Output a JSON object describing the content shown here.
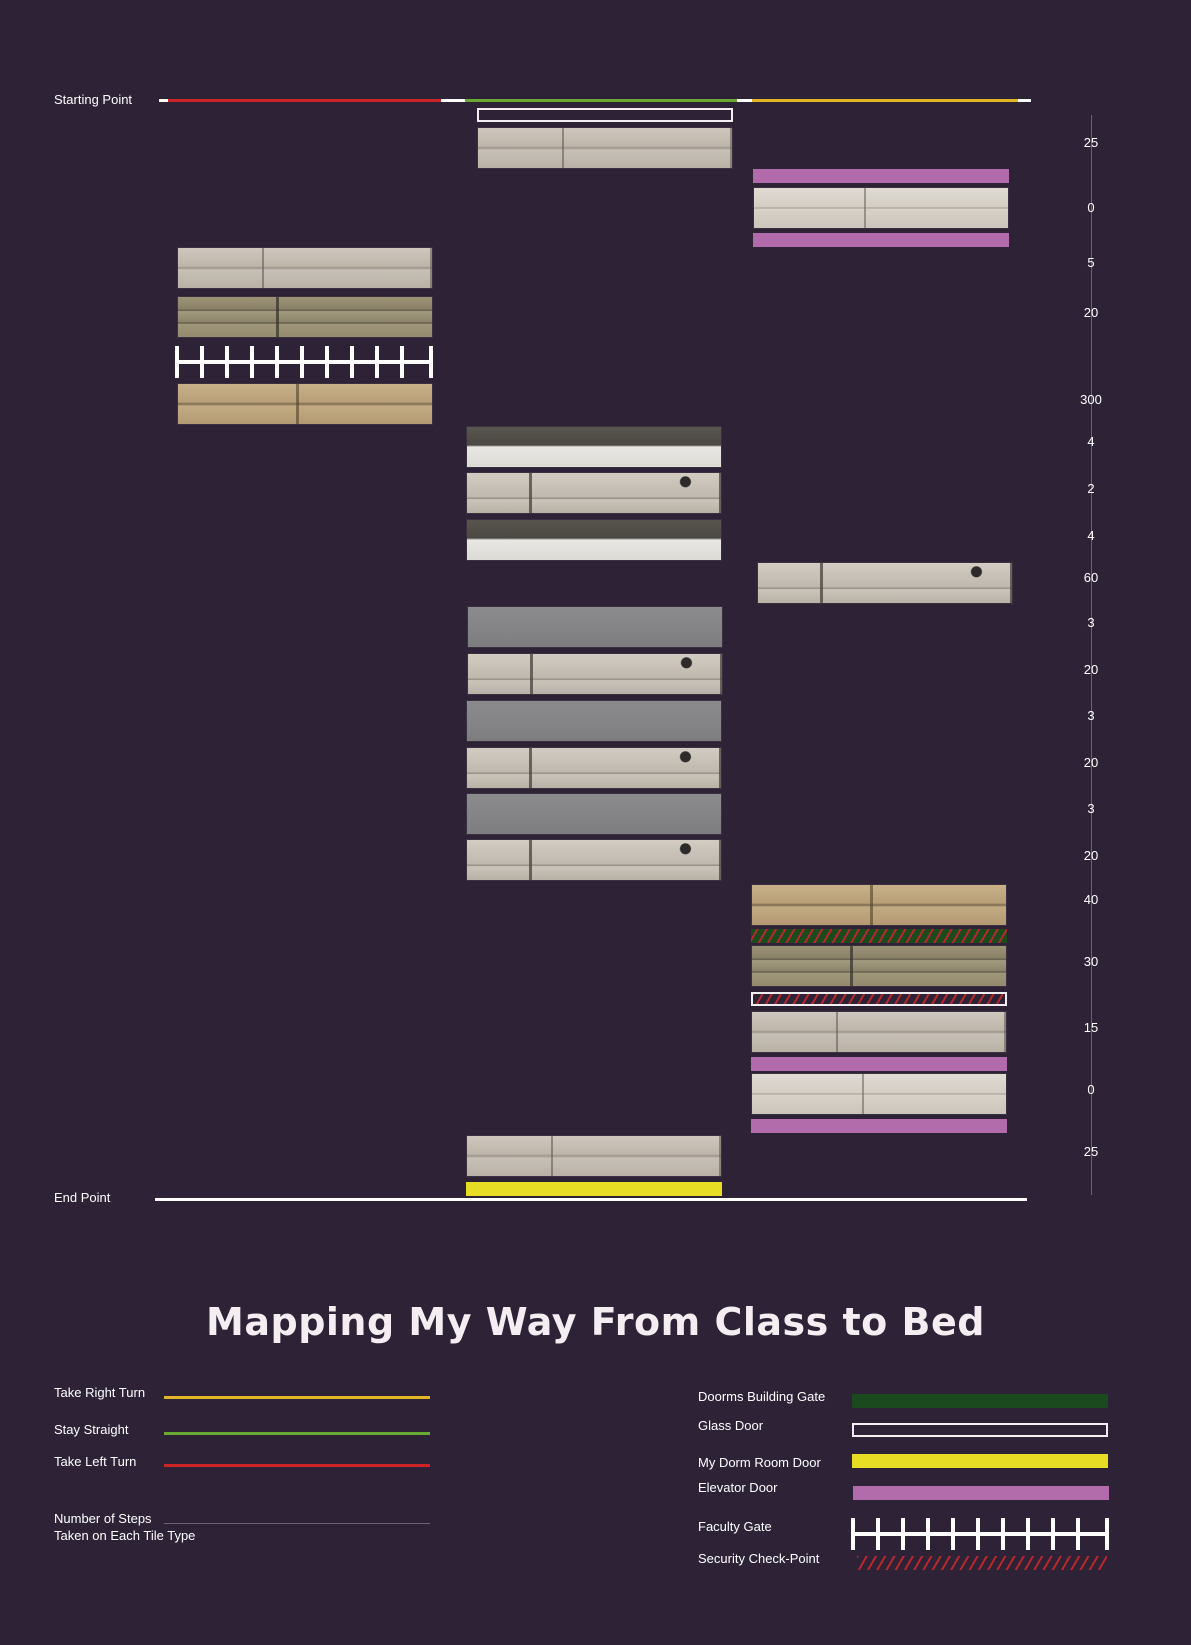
{
  "labels": {
    "start": "Starting Point",
    "end": "End Point"
  },
  "colors": {
    "background": "#2e2336",
    "right_turn": "#e2b626",
    "straight": "#6aaa34",
    "left_turn": "#cc2228",
    "dorms_gate": "#1a4a1e",
    "glass_door": "#f2eef2",
    "dorm_door": "#e7dd25",
    "elevator_door": "#b26bab",
    "security": "#b8272a"
  },
  "route": [
    "left_turn",
    "straight",
    "right_turn"
  ],
  "step_counts": [
    "25",
    "0",
    "5",
    "20",
    "300",
    "4",
    "2",
    "4",
    "60",
    "3",
    "20",
    "3",
    "20",
    "3",
    "20",
    "40",
    "30",
    "15",
    "0",
    "25"
  ],
  "title": "Mapping My Way From Class to Bed",
  "legend_left": {
    "right_turn": "Take Right Turn",
    "straight": "Stay Straight",
    "left_turn": "Take Left Turn",
    "steps_line1": "Number of Steps",
    "steps_line2": "Taken on Each Tile Type"
  },
  "legend_right": {
    "dorms_gate": "Doorms Building Gate",
    "glass_door": "Glass Door",
    "dorm_door": "My Dorm Room Door",
    "elevator_door": "Elevator Door",
    "faculty_gate": "Faculty Gate",
    "security": "Security Check-Point"
  },
  "icons": {
    "faculty_gate": "fence-icon",
    "security": "hatch-pattern-icon"
  }
}
